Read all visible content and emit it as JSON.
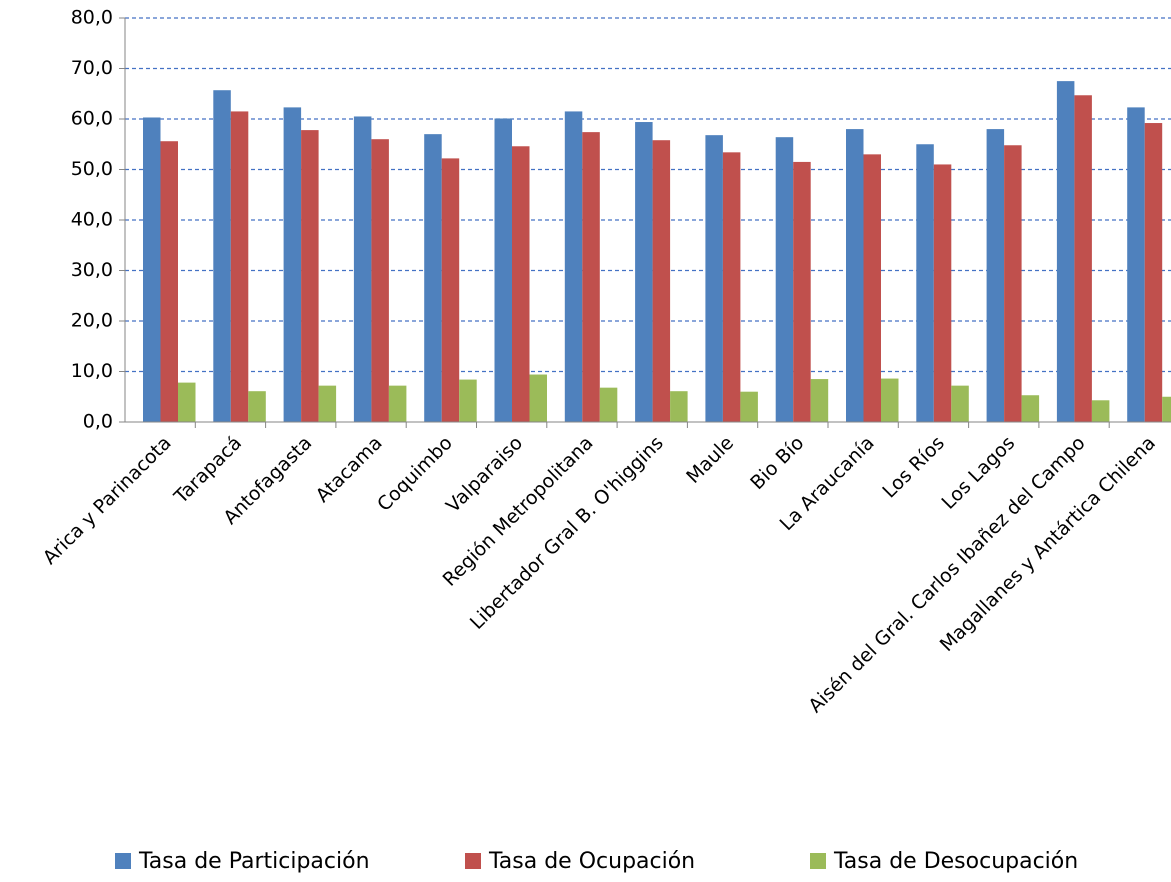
{
  "chart_data": {
    "type": "bar",
    "categories": [
      "Arica y Parinacota",
      "Tarapacá",
      "Antofagasta",
      "Atacama",
      "Coquimbo",
      "Valparaiso",
      "Región Metropolitana",
      "Libertador Gral B. O'higgins",
      "Maule",
      "Bio Bío",
      "La Araucanía",
      "Los Ríos",
      "Los Lagos",
      "Aisén del Gral. Carlos Ibañez del Campo",
      "Magallanes y Antártica Chilena"
    ],
    "series": [
      {
        "name": "Tasa de Participación",
        "color": "#4f81bd",
        "values": [
          60.3,
          65.7,
          62.3,
          60.5,
          57.0,
          60.1,
          61.5,
          59.4,
          56.8,
          56.4,
          58.0,
          55.0,
          58.0,
          67.5,
          62.3
        ]
      },
      {
        "name": "Tasa de Ocupación",
        "color": "#c0504d",
        "values": [
          55.6,
          61.5,
          57.8,
          56.0,
          52.2,
          54.6,
          57.4,
          55.8,
          53.4,
          51.5,
          53.0,
          51.0,
          54.8,
          64.7,
          59.2
        ]
      },
      {
        "name": "Tasa de Desocupación",
        "color": "#9bbb59",
        "values": [
          7.8,
          6.1,
          7.2,
          7.2,
          8.4,
          9.4,
          6.8,
          6.1,
          6.0,
          8.5,
          8.6,
          7.2,
          5.3,
          4.3,
          5.0
        ]
      }
    ],
    "ylim": [
      0,
      80
    ],
    "yticks": [
      {
        "value": 0,
        "label": "0,0"
      },
      {
        "value": 10,
        "label": "10,0"
      },
      {
        "value": 20,
        "label": "20,0"
      },
      {
        "value": 30,
        "label": "30,0"
      },
      {
        "value": 40,
        "label": "40,0"
      },
      {
        "value": 50,
        "label": "50,0"
      },
      {
        "value": 60,
        "label": "60,0"
      },
      {
        "value": 70,
        "label": "70,0"
      },
      {
        "value": 80,
        "label": "80,0"
      }
    ],
    "grid": true,
    "legend": "bottom"
  }
}
